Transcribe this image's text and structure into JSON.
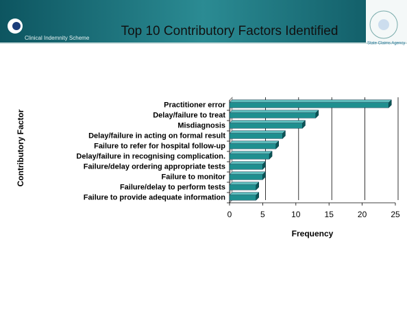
{
  "header": {
    "title": "Top 10 Contributory Factors Identified",
    "left_logo": "Clinical Indemnity Scheme",
    "right_logo": "State Claims Agency"
  },
  "chart_data": {
    "type": "barh",
    "categories": [
      "Practitioner error",
      "Delay/failure to treat",
      "Misdiagnosis",
      "Delay/failure in acting on formal result",
      "Failure to refer for hospital follow-up",
      "Delay/failure in recognising complication.",
      "Failure/delay ordering appropriate tests",
      "Failure to monitor",
      "Failure/delay to perform tests",
      "Failure to provide adequate information"
    ],
    "values": [
      24,
      13,
      11,
      8,
      7,
      6,
      5,
      5,
      4,
      4
    ],
    "color": "#1f8f8f",
    "xlim": [
      0,
      25
    ],
    "xticks": [
      0,
      5,
      10,
      15,
      20,
      25
    ],
    "grid": true,
    "xlabel": "Frequency",
    "ylabel": "Contributory Factor"
  }
}
